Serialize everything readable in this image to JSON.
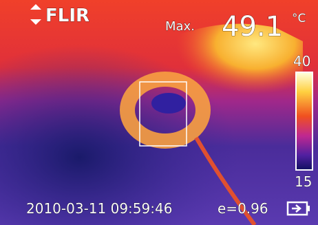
{
  "overlay": {
    "brand": "FLIR",
    "max_label": "Max.",
    "max_value": "49.1",
    "unit": "°C",
    "scale_top": "40",
    "scale_bottom": "15",
    "timestamp": "2010-03-11 09:59:46",
    "emissivity": "e=0.96"
  }
}
